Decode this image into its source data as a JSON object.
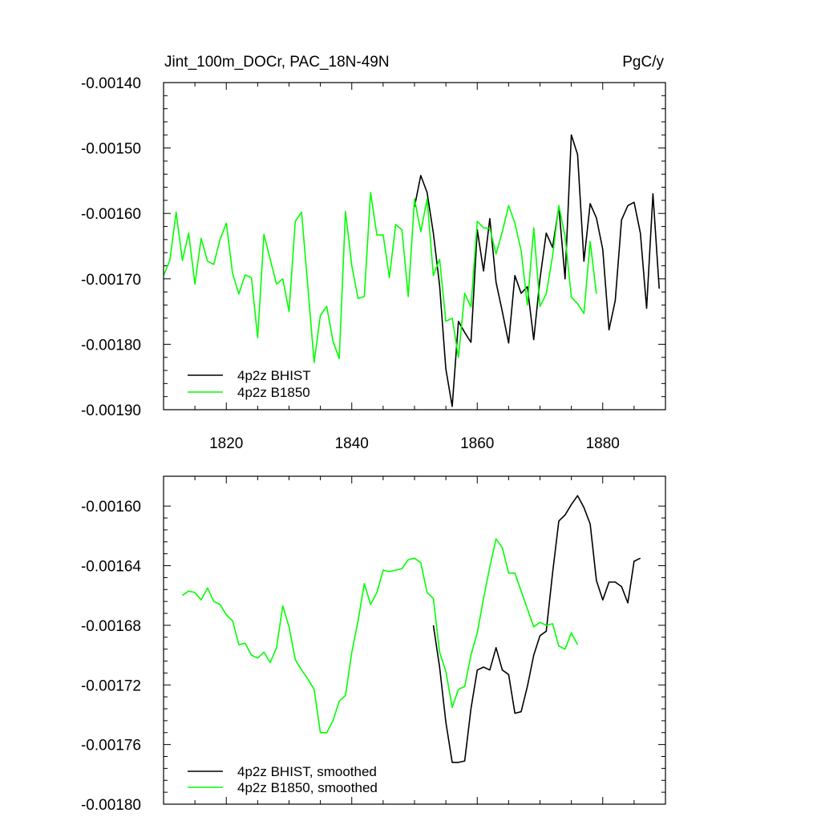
{
  "colors": {
    "bhist": "#000000",
    "b1850": "#00ff00"
  },
  "chart_data": [
    {
      "type": "line",
      "title": "Jint_100m_DOCr, PAC_18N-49N",
      "units": "PgC/y",
      "xlim": [
        1810,
        1890
      ],
      "ylim": [
        -0.0019,
        -0.0014
      ],
      "x_ticks": [
        1820,
        1840,
        1860,
        1880
      ],
      "y_ticks": [
        -0.0019,
        -0.0018,
        -0.0017,
        -0.0016,
        -0.0015,
        -0.0014
      ],
      "y_tick_labels": [
        "-0.00190",
        "-0.00180",
        "-0.00170",
        "-0.00160",
        "-0.00150",
        "-0.00140"
      ],
      "legend_position": "bottom-left",
      "series": [
        {
          "name": "4p2z BHIST",
          "color": "#000000",
          "x": [
            1850,
            1851,
            1852,
            1853,
            1854,
            1855,
            1856,
            1857,
            1858,
            1859,
            1860,
            1861,
            1862,
            1863,
            1864,
            1865,
            1866,
            1867,
            1868,
            1869,
            1870,
            1871,
            1872,
            1873,
            1874,
            1875,
            1876,
            1877,
            1878,
            1879,
            1880,
            1881,
            1882,
            1883,
            1884,
            1885,
            1886,
            1887,
            1888,
            1889
          ],
          "y": [
            -0.00159,
            -0.001542,
            -0.001568,
            -0.00163,
            -0.00171,
            -0.001838,
            -0.001895,
            -0.001765,
            -0.001782,
            -0.001797,
            -0.001625,
            -0.001688,
            -0.001608,
            -0.001705,
            -0.00175,
            -0.001798,
            -0.001695,
            -0.001722,
            -0.001712,
            -0.001793,
            -0.0017,
            -0.00163,
            -0.001652,
            -0.00159,
            -0.0017,
            -0.00148,
            -0.00151,
            -0.001673,
            -0.001585,
            -0.001607,
            -0.001655,
            -0.001778,
            -0.001733,
            -0.00161,
            -0.001588,
            -0.001583,
            -0.00163,
            -0.001745,
            -0.00157,
            -0.001715
          ]
        },
        {
          "name": "4p2z B1850",
          "color": "#00ff00",
          "x": [
            1810,
            1811,
            1812,
            1813,
            1814,
            1815,
            1816,
            1817,
            1818,
            1819,
            1820,
            1821,
            1822,
            1823,
            1824,
            1825,
            1826,
            1827,
            1828,
            1829,
            1830,
            1831,
            1832,
            1833,
            1834,
            1835,
            1836,
            1837,
            1838,
            1839,
            1840,
            1841,
            1842,
            1843,
            1844,
            1845,
            1846,
            1847,
            1848,
            1849,
            1850,
            1851,
            1852,
            1853,
            1854,
            1855,
            1856,
            1857,
            1858,
            1859,
            1860,
            1861,
            1862,
            1863,
            1864,
            1865,
            1866,
            1867,
            1868,
            1869,
            1870,
            1871,
            1872,
            1873,
            1874,
            1875,
            1876,
            1877,
            1878,
            1879
          ],
          "y": [
            -0.001695,
            -0.001672,
            -0.001598,
            -0.001672,
            -0.00163,
            -0.001708,
            -0.001638,
            -0.001673,
            -0.001678,
            -0.00164,
            -0.001615,
            -0.001692,
            -0.001723,
            -0.001694,
            -0.001698,
            -0.00179,
            -0.001632,
            -0.00167,
            -0.001708,
            -0.0017,
            -0.00175,
            -0.001612,
            -0.001598,
            -0.001712,
            -0.001828,
            -0.001756,
            -0.001742,
            -0.001795,
            -0.001822,
            -0.001597,
            -0.00168,
            -0.00173,
            -0.001727,
            -0.001568,
            -0.001633,
            -0.001633,
            -0.001698,
            -0.001617,
            -0.001625,
            -0.001727,
            -0.001578,
            -0.001628,
            -0.001578,
            -0.001695,
            -0.00167,
            -0.001765,
            -0.00176,
            -0.00182,
            -0.001722,
            -0.001743,
            -0.001612,
            -0.001622,
            -0.001623,
            -0.001662,
            -0.001628,
            -0.001588,
            -0.001615,
            -0.001657,
            -0.00174,
            -0.001622,
            -0.001742,
            -0.001723,
            -0.001665,
            -0.001588,
            -0.001635,
            -0.001728,
            -0.001738,
            -0.001753,
            -0.001643,
            -0.001723
          ]
        }
      ]
    },
    {
      "type": "line",
      "title": "",
      "xlim": [
        1810,
        1890
      ],
      "ylim": [
        -0.0018,
        -0.00158
      ],
      "x_ticks": [
        1820,
        1840,
        1860,
        1880
      ],
      "y_ticks": [
        -0.0018,
        -0.00176,
        -0.00172,
        -0.00168,
        -0.00164,
        -0.0016
      ],
      "y_tick_labels": [
        "-0.00180",
        "-0.00176",
        "-0.00172",
        "-0.00168",
        "-0.00164",
        "-0.00160"
      ],
      "legend_position": "bottom-left",
      "series": [
        {
          "name": "4p2z BHIST, smoothed",
          "color": "#000000",
          "x": [
            1853,
            1854,
            1855,
            1856,
            1857,
            1858,
            1859,
            1860,
            1861,
            1862,
            1863,
            1864,
            1865,
            1866,
            1867,
            1868,
            1869,
            1870,
            1871,
            1872,
            1873,
            1874,
            1875,
            1876,
            1877,
            1878,
            1879,
            1880,
            1881,
            1882,
            1883,
            1884,
            1885,
            1886
          ],
          "y": [
            -0.00168,
            -0.001708,
            -0.001745,
            -0.001772,
            -0.001772,
            -0.001771,
            -0.001736,
            -0.00171,
            -0.001708,
            -0.00171,
            -0.001695,
            -0.00171,
            -0.001713,
            -0.001739,
            -0.001738,
            -0.001721,
            -0.0017,
            -0.001687,
            -0.001684,
            -0.001645,
            -0.00161,
            -0.001606,
            -0.001599,
            -0.001593,
            -0.001601,
            -0.001612,
            -0.00165,
            -0.001663,
            -0.001651,
            -0.001651,
            -0.001654,
            -0.001665,
            -0.001637,
            -0.001635
          ]
        },
        {
          "name": "4p2z B1850, smoothed",
          "color": "#00ff00",
          "x": [
            1813,
            1814,
            1815,
            1816,
            1817,
            1818,
            1819,
            1820,
            1821,
            1822,
            1823,
            1824,
            1825,
            1826,
            1827,
            1828,
            1829,
            1830,
            1831,
            1832,
            1833,
            1834,
            1835,
            1836,
            1837,
            1838,
            1839,
            1840,
            1841,
            1842,
            1843,
            1844,
            1845,
            1846,
            1847,
            1848,
            1849,
            1850,
            1851,
            1852,
            1853,
            1854,
            1855,
            1856,
            1857,
            1858,
            1859,
            1860,
            1861,
            1862,
            1863,
            1864,
            1865,
            1866,
            1867,
            1868,
            1869,
            1870,
            1871,
            1872,
            1873,
            1874,
            1875,
            1876
          ],
          "y": [
            -0.00166,
            -0.001657,
            -0.001658,
            -0.001663,
            -0.001655,
            -0.001664,
            -0.001666,
            -0.001673,
            -0.001677,
            -0.001693,
            -0.001692,
            -0.0017,
            -0.001702,
            -0.001698,
            -0.001705,
            -0.001695,
            -0.001667,
            -0.001681,
            -0.001703,
            -0.00171,
            -0.001716,
            -0.001723,
            -0.001752,
            -0.001752,
            -0.001744,
            -0.001731,
            -0.001727,
            -0.001698,
            -0.001677,
            -0.001652,
            -0.001666,
            -0.001658,
            -0.001643,
            -0.001644,
            -0.001643,
            -0.001642,
            -0.001636,
            -0.001635,
            -0.001638,
            -0.001658,
            -0.001662,
            -0.001698,
            -0.001711,
            -0.001735,
            -0.001723,
            -0.001721,
            -0.0017,
            -0.001685,
            -0.001662,
            -0.001641,
            -0.001622,
            -0.001628,
            -0.001645,
            -0.001645,
            -0.001657,
            -0.001669,
            -0.001681,
            -0.001678,
            -0.00168,
            -0.001679,
            -0.001694,
            -0.001696,
            -0.001685,
            -0.001693
          ]
        }
      ]
    }
  ]
}
